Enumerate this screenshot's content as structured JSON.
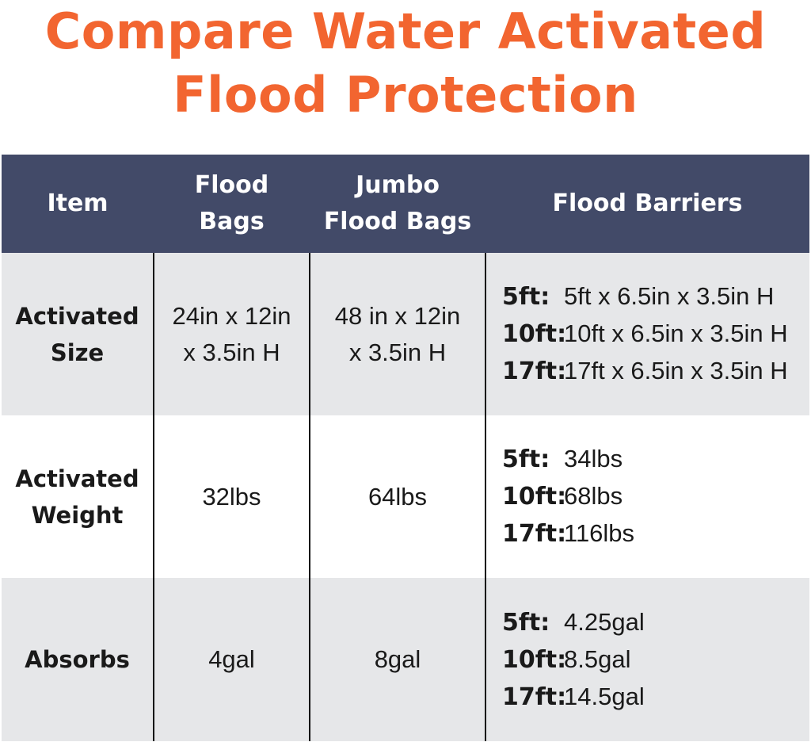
{
  "title": {
    "line1": "Compare Water Activated",
    "line2": "Flood Protection"
  },
  "colors": {
    "title": "#f26530",
    "header_bg": "#424a68",
    "row_shade": "#e6e7e9"
  },
  "table": {
    "headers": {
      "item": "Item",
      "flood_bags_1": "Flood",
      "flood_bags_2": "Bags",
      "jumbo_1": "Jumbo",
      "jumbo_2": "Flood Bags",
      "barriers": "Flood Barriers"
    },
    "rows": [
      {
        "label_1": "Activated",
        "label_2": "Size",
        "flood_bags_1": "24in x 12in",
        "flood_bags_2": "x 3.5in H",
        "jumbo_1": "48 in x 12in",
        "jumbo_2": "x 3.5in H",
        "barriers": [
          {
            "key": "5ft:",
            "value": "5ft x 6.5in x 3.5in H"
          },
          {
            "key": "10ft:",
            "value": "10ft x 6.5in x 3.5in H"
          },
          {
            "key": "17ft:",
            "value": "17ft x 6.5in x 3.5in H"
          }
        ]
      },
      {
        "label_1": "Activated",
        "label_2": "Weight",
        "flood_bags": "32lbs",
        "jumbo": "64lbs",
        "barriers": [
          {
            "key": "5ft:",
            "value": "34lbs"
          },
          {
            "key": "10ft:",
            "value": "68lbs"
          },
          {
            "key": "17ft:",
            "value": "116lbs"
          }
        ]
      },
      {
        "label": "Absorbs",
        "flood_bags": "4gal",
        "jumbo": "8gal",
        "barriers": [
          {
            "key": "5ft:",
            "value": "4.25gal"
          },
          {
            "key": "10ft:",
            "value": "8.5gal"
          },
          {
            "key": "17ft:",
            "value": "14.5gal"
          }
        ]
      }
    ]
  }
}
